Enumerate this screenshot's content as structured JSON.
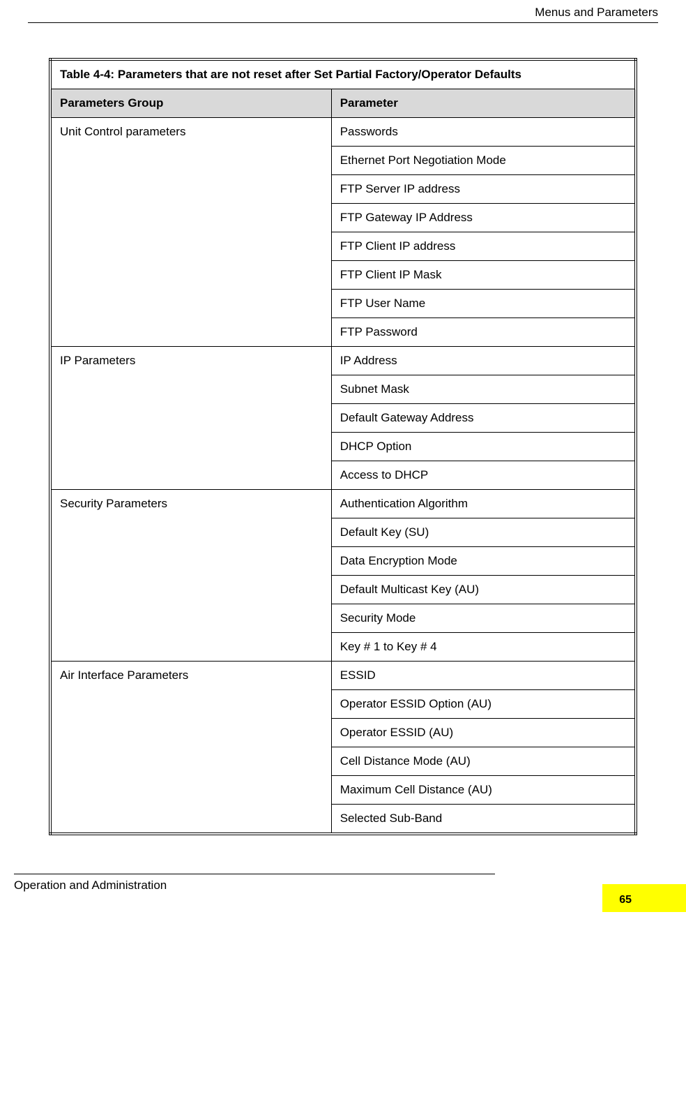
{
  "header": {
    "right_text": "Menus and Parameters"
  },
  "table": {
    "caption": "Table 4-4: Parameters that are not reset after Set Partial Factory/Operator Defaults",
    "columns": [
      "Parameters Group",
      "Parameter"
    ],
    "col_widths_pct": [
      48,
      52
    ],
    "header_bg": "#d9d9d9",
    "border_color": "#000000",
    "font_size_pt": 13,
    "groups": [
      {
        "name": "Unit Control parameters",
        "params": [
          "Passwords",
          "Ethernet Port Negotiation Mode",
          "FTP Server IP address",
          "FTP Gateway IP Address",
          "FTP Client IP address",
          "FTP Client IP Mask",
          "FTP User Name",
          "FTP Password"
        ]
      },
      {
        "name": "IP Parameters",
        "params": [
          "IP Address",
          "Subnet Mask",
          "Default Gateway Address",
          "DHCP Option",
          "Access to DHCP"
        ]
      },
      {
        "name": "Security Parameters",
        "params": [
          "Authentication Algorithm",
          "Default Key (SU)",
          "Data Encryption Mode",
          "Default Multicast Key (AU)",
          "Security Mode",
          "Key # 1 to Key # 4"
        ]
      },
      {
        "name": "Air Interface Parameters",
        "params": [
          "ESSID",
          "Operator ESSID Option (AU)",
          "Operator ESSID (AU)",
          "Cell Distance Mode (AU)",
          "Maximum Cell Distance (AU)",
          "Selected Sub-Band"
        ]
      }
    ]
  },
  "footer": {
    "left_text": "Operation and Administration",
    "page_number": "65",
    "highlight_color": "#ffff00"
  }
}
